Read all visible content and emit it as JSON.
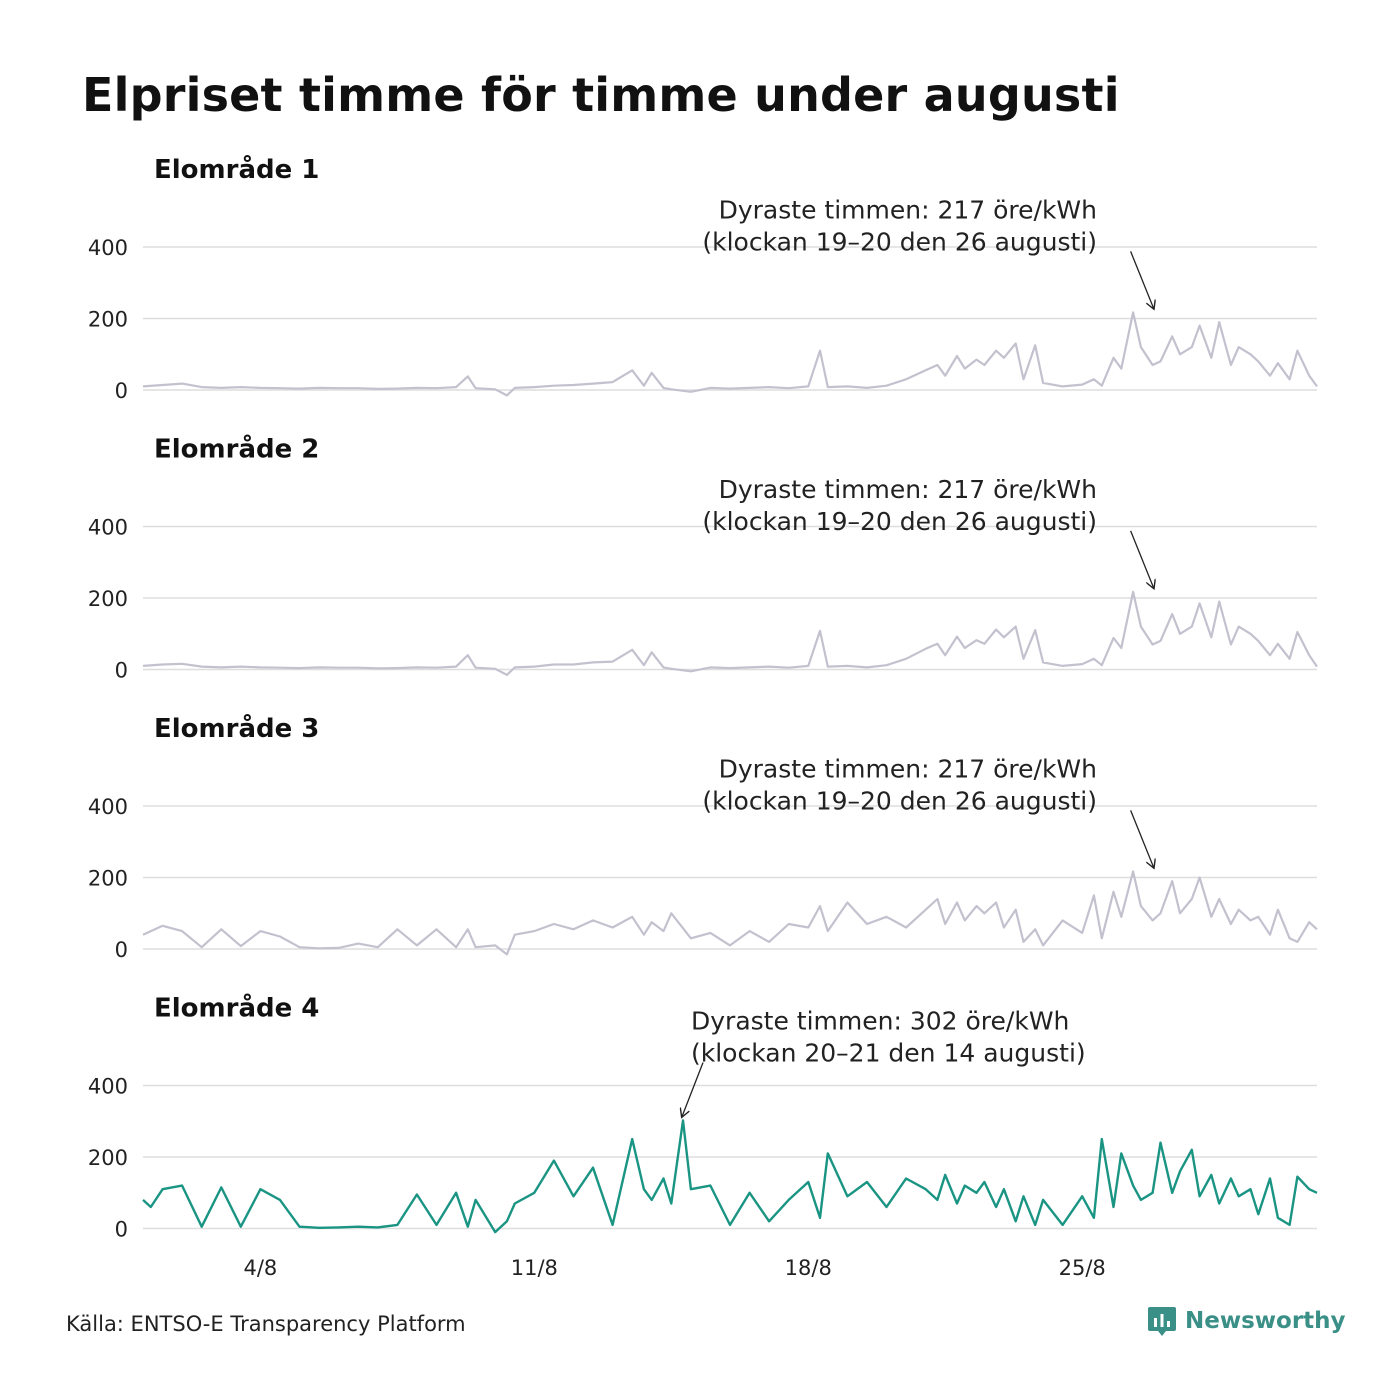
{
  "title": "Elpriset timme för timme under augusti",
  "source": "Källa: ENTSO-E Transparency Platform",
  "brand": {
    "name": "Newsworthy",
    "icon": "newsworthy-logo-icon",
    "color": "#3a8f87"
  },
  "colors": {
    "muted_line": "#c4c1cf",
    "highlight_line": "#1a9483",
    "grid": "#dedede"
  },
  "chart_data": {
    "type": "line",
    "x_unit": "day of August",
    "xlim": [
      1,
      31
    ],
    "x_ticks": [
      {
        "value": 4,
        "label": "4/8"
      },
      {
        "value": 11,
        "label": "11/8"
      },
      {
        "value": 18,
        "label": "18/8"
      },
      {
        "value": 25,
        "label": "25/8"
      }
    ],
    "ylim": [
      0,
      400
    ],
    "y_ticks": [
      0,
      200,
      400
    ],
    "grid": true,
    "legend": "none",
    "panels": [
      {
        "name": "Elområde 1",
        "highlight": false,
        "annotation": {
          "line1": "Dyraste timmen: 217 öre/kWh",
          "line2": "(klockan 19–20 den 26 augusti)",
          "x": 26.8,
          "y": 217
        },
        "series": {
          "x": [
            1,
            1.5,
            2,
            2.5,
            3,
            3.5,
            4,
            4.5,
            5,
            5.5,
            6,
            6.5,
            7,
            7.5,
            8,
            8.5,
            9,
            9.3,
            9.5,
            10,
            10.3,
            10.5,
            11,
            11.5,
            12,
            12.5,
            13,
            13.5,
            13.8,
            14,
            14.3,
            14.5,
            15,
            15.5,
            16,
            16.5,
            17,
            17.5,
            18,
            18.3,
            18.5,
            19,
            19.5,
            20,
            20.5,
            21,
            21.3,
            21.5,
            21.8,
            22,
            22.3,
            22.5,
            22.8,
            23,
            23.3,
            23.5,
            23.8,
            24,
            24.5,
            25,
            25.3,
            25.5,
            25.8,
            26,
            26.3,
            26.5,
            26.8,
            27,
            27.3,
            27.5,
            27.8,
            28,
            28.3,
            28.5,
            28.8,
            29,
            29.3,
            29.5,
            29.8,
            30,
            30.3,
            30.5,
            30.8,
            31
          ],
          "y": [
            10,
            14,
            18,
            8,
            6,
            8,
            6,
            5,
            4,
            6,
            5,
            5,
            3,
            4,
            6,
            5,
            8,
            38,
            5,
            2,
            -15,
            6,
            8,
            12,
            14,
            18,
            22,
            55,
            12,
            48,
            6,
            2,
            -5,
            6,
            4,
            6,
            8,
            5,
            10,
            110,
            8,
            10,
            6,
            12,
            30,
            55,
            70,
            40,
            95,
            60,
            85,
            70,
            110,
            90,
            130,
            30,
            125,
            20,
            10,
            15,
            30,
            12,
            90,
            60,
            217,
            120,
            70,
            80,
            150,
            100,
            120,
            180,
            90,
            190,
            70,
            120,
            100,
            80,
            40,
            75,
            30,
            110,
            40,
            10
          ]
        }
      },
      {
        "name": "Elområde 2",
        "highlight": false,
        "annotation": {
          "line1": "Dyraste timmen: 217 öre/kWh",
          "line2": "(klockan 19–20 den 26 augusti)",
          "x": 26.8,
          "y": 217
        },
        "series": {
          "x": [
            1,
            1.5,
            2,
            2.5,
            3,
            3.5,
            4,
            4.5,
            5,
            5.5,
            6,
            6.5,
            7,
            7.5,
            8,
            8.5,
            9,
            9.3,
            9.5,
            10,
            10.3,
            10.5,
            11,
            11.5,
            12,
            12.5,
            13,
            13.5,
            13.8,
            14,
            14.3,
            14.5,
            15,
            15.5,
            16,
            16.5,
            17,
            17.5,
            18,
            18.3,
            18.5,
            19,
            19.5,
            20,
            20.5,
            21,
            21.3,
            21.5,
            21.8,
            22,
            22.3,
            22.5,
            22.8,
            23,
            23.3,
            23.5,
            23.8,
            24,
            24.5,
            25,
            25.3,
            25.5,
            25.8,
            26,
            26.3,
            26.5,
            26.8,
            27,
            27.3,
            27.5,
            27.8,
            28,
            28.3,
            28.5,
            28.8,
            29,
            29.3,
            29.5,
            29.8,
            30,
            30.3,
            30.5,
            30.8,
            31
          ],
          "y": [
            10,
            14,
            16,
            8,
            6,
            8,
            6,
            5,
            4,
            6,
            5,
            5,
            3,
            4,
            6,
            5,
            8,
            40,
            5,
            2,
            -15,
            6,
            8,
            14,
            14,
            20,
            22,
            55,
            12,
            48,
            6,
            2,
            -5,
            6,
            4,
            6,
            8,
            5,
            10,
            108,
            8,
            10,
            6,
            12,
            30,
            58,
            72,
            40,
            92,
            60,
            82,
            72,
            112,
            90,
            120,
            30,
            110,
            20,
            10,
            15,
            30,
            12,
            88,
            60,
            217,
            120,
            70,
            80,
            155,
            100,
            120,
            185,
            90,
            190,
            70,
            120,
            100,
            80,
            40,
            72,
            30,
            105,
            40,
            8
          ]
        }
      },
      {
        "name": "Elområde 3",
        "highlight": false,
        "annotation": {
          "line1": "Dyraste timmen: 217 öre/kWh",
          "line2": "(klockan 19–20 den 26 augusti)",
          "x": 26.8,
          "y": 217
        },
        "series": {
          "x": [
            1,
            1.5,
            2,
            2.5,
            3,
            3.5,
            4,
            4.5,
            5,
            5.5,
            6,
            6.5,
            7,
            7.5,
            8,
            8.5,
            9,
            9.3,
            9.5,
            10,
            10.3,
            10.5,
            11,
            11.5,
            12,
            12.5,
            13,
            13.5,
            13.8,
            14,
            14.3,
            14.5,
            15,
            15.5,
            16,
            16.5,
            17,
            17.5,
            18,
            18.3,
            18.5,
            19,
            19.5,
            20,
            20.5,
            21,
            21.3,
            21.5,
            21.8,
            22,
            22.3,
            22.5,
            22.8,
            23,
            23.3,
            23.5,
            23.8,
            24,
            24.5,
            25,
            25.3,
            25.5,
            25.8,
            26,
            26.3,
            26.5,
            26.8,
            27,
            27.3,
            27.5,
            27.8,
            28,
            28.3,
            28.5,
            28.8,
            29,
            29.3,
            29.5,
            29.8,
            30,
            30.3,
            30.5,
            30.8,
            31
          ],
          "y": [
            40,
            65,
            50,
            5,
            55,
            8,
            50,
            35,
            5,
            2,
            3,
            15,
            5,
            55,
            10,
            55,
            5,
            55,
            5,
            10,
            -15,
            40,
            50,
            70,
            55,
            80,
            60,
            90,
            40,
            75,
            50,
            100,
            30,
            45,
            10,
            50,
            20,
            70,
            60,
            120,
            50,
            130,
            70,
            90,
            60,
            110,
            140,
            70,
            130,
            80,
            120,
            100,
            130,
            60,
            110,
            20,
            55,
            10,
            80,
            45,
            150,
            30,
            160,
            90,
            217,
            120,
            80,
            100,
            190,
            100,
            140,
            200,
            90,
            140,
            70,
            110,
            80,
            90,
            40,
            110,
            30,
            20,
            75,
            55
          ]
        }
      },
      {
        "name": "Elområde 4",
        "highlight": true,
        "annotation": {
          "line1": "Dyraste timmen: 302 öre/kWh",
          "line2": "(klockan 20–21 den 14 augusti)",
          "x": 14.8,
          "y": 302
        },
        "series": {
          "x": [
            1,
            1.2,
            1.5,
            2,
            2.5,
            3,
            3.5,
            4,
            4.5,
            5,
            5.5,
            6,
            6.5,
            7,
            7.5,
            8,
            8.5,
            9,
            9.3,
            9.5,
            10,
            10.3,
            10.5,
            11,
            11.5,
            12,
            12.5,
            13,
            13.5,
            13.8,
            14,
            14.3,
            14.5,
            14.8,
            15,
            15.5,
            16,
            16.5,
            17,
            17.5,
            18,
            18.3,
            18.5,
            19,
            19.5,
            20,
            20.5,
            21,
            21.3,
            21.5,
            21.8,
            22,
            22.3,
            22.5,
            22.8,
            23,
            23.3,
            23.5,
            23.8,
            24,
            24.5,
            25,
            25.3,
            25.5,
            25.8,
            26,
            26.3,
            26.5,
            26.8,
            27,
            27.3,
            27.5,
            27.8,
            28,
            28.3,
            28.5,
            28.8,
            29,
            29.3,
            29.5,
            29.8,
            30,
            30.3,
            30.5,
            30.8,
            31
          ],
          "y": [
            80,
            60,
            110,
            120,
            5,
            115,
            5,
            110,
            80,
            5,
            2,
            3,
            5,
            3,
            10,
            95,
            10,
            100,
            5,
            80,
            -10,
            20,
            70,
            100,
            190,
            90,
            170,
            10,
            250,
            110,
            80,
            140,
            70,
            302,
            110,
            120,
            10,
            100,
            20,
            80,
            130,
            30,
            210,
            90,
            130,
            60,
            140,
            110,
            80,
            150,
            70,
            120,
            100,
            130,
            60,
            110,
            20,
            90,
            10,
            80,
            10,
            90,
            30,
            250,
            60,
            210,
            120,
            80,
            100,
            240,
            100,
            160,
            220,
            90,
            150,
            70,
            140,
            90,
            110,
            40,
            140,
            30,
            10,
            145,
            110,
            100
          ]
        }
      }
    ]
  }
}
